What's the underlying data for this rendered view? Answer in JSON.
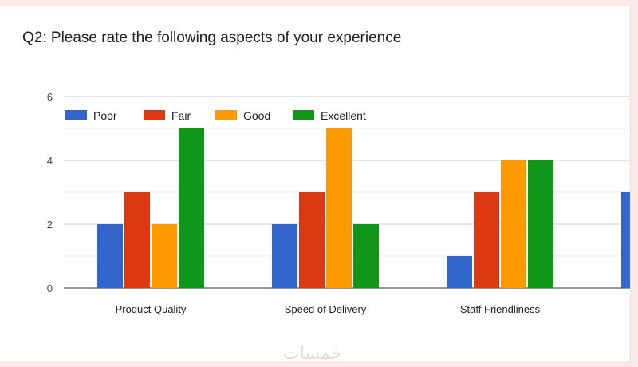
{
  "question": {
    "title": "Q2: Please rate the following aspects of your experience"
  },
  "watermark": "خمسات",
  "chart_data": {
    "type": "bar",
    "title": "Q2: Please rate the following aspects of your experience",
    "xlabel": "",
    "ylabel": "",
    "ylim": [
      0,
      6
    ],
    "yticks": [
      0,
      2,
      4,
      6
    ],
    "grid": true,
    "legend_position": "top-left",
    "categories": [
      "Product Quality",
      "Speed of Delivery",
      "Staff Friendliness",
      ""
    ],
    "series": [
      {
        "name": "Poor",
        "color": "#3366cc",
        "values": [
          2,
          2,
          1,
          3
        ]
      },
      {
        "name": "Fair",
        "color": "#dc3912",
        "values": [
          3,
          3,
          3,
          null
        ]
      },
      {
        "name": "Good",
        "color": "#ff9900",
        "values": [
          2,
          5,
          4,
          null
        ]
      },
      {
        "name": "Excellent",
        "color": "#109618",
        "values": [
          5,
          2,
          4,
          null
        ]
      }
    ]
  }
}
